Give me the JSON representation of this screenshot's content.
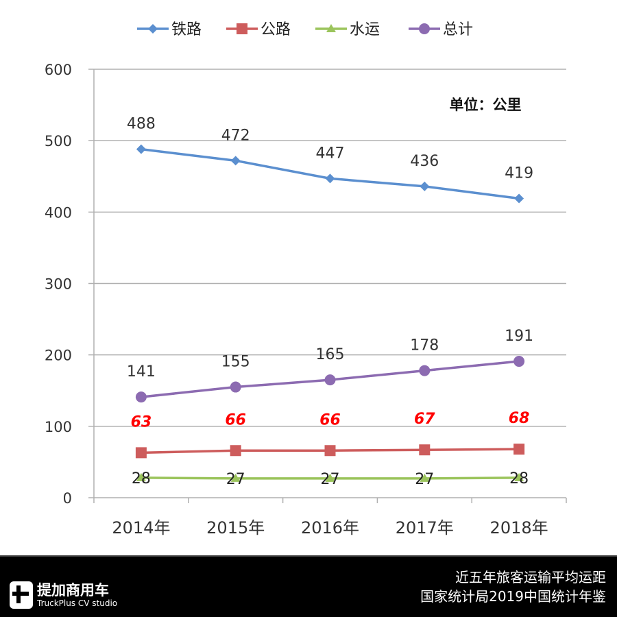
{
  "chart_data": {
    "type": "line",
    "categories": [
      "2014年",
      "2015年",
      "2016年",
      "2017年",
      "2018年"
    ],
    "series": [
      {
        "name": "铁路",
        "values": [
          488,
          472,
          447,
          436,
          419
        ],
        "color": "#5b8fcf",
        "marker": "diamond",
        "label_color": "#333333",
        "label_style": "normal"
      },
      {
        "name": "公路",
        "values": [
          63,
          66,
          66,
          67,
          68
        ],
        "color": "#cd5c5c",
        "marker": "square",
        "label_color": "#ff0000",
        "label_style": "bold-italic"
      },
      {
        "name": "水运",
        "values": [
          28,
          27,
          27,
          27,
          28
        ],
        "color": "#9bc45c",
        "marker": "triangle",
        "label_color": "#222222",
        "label_style": "normal"
      },
      {
        "name": "总计",
        "values": [
          141,
          155,
          165,
          178,
          191
        ],
        "color": "#8c6bb1",
        "marker": "circle",
        "label_color": "#333333",
        "label_style": "normal"
      }
    ],
    "ylim": [
      0,
      600
    ],
    "yticks": [
      0,
      100,
      200,
      300,
      400,
      500,
      600
    ],
    "grid": true,
    "legend": "top",
    "annotation": "单位：公里"
  },
  "footer": {
    "brand_cn": "提加商用车",
    "brand_en": "TruckPlus CV studio",
    "title": "近五年旅客运输平均运距",
    "source": "国家统计局2019中国统计年鉴"
  }
}
